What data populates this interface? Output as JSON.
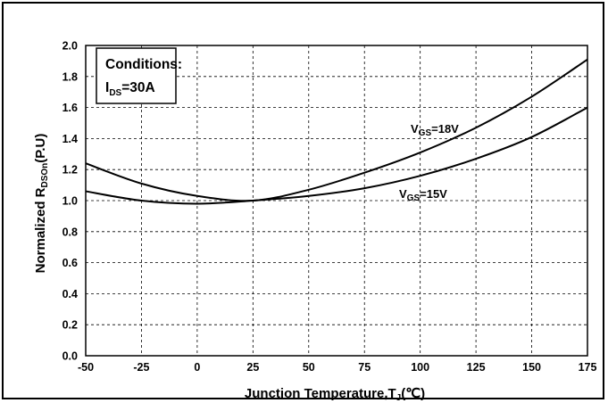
{
  "chart_data": {
    "type": "line",
    "xlabel": {
      "main": "Junction Temperature,T",
      "sub": "J",
      "unit": "(℃)"
    },
    "ylabel": {
      "main": "Normalized R",
      "sub": "DSOn",
      "unit": "(P.U)"
    },
    "xlim": [
      -50,
      175
    ],
    "ylim": [
      0,
      2.0
    ],
    "x_ticks": [
      "-50",
      "-25",
      "0",
      "25",
      "50",
      "75",
      "100",
      "125",
      "150",
      "175"
    ],
    "y_ticks": [
      "0.0",
      "0.2",
      "0.4",
      "0.6",
      "0.8",
      "1.0",
      "1.2",
      "1.4",
      "1.6",
      "1.8",
      "2.0"
    ],
    "grid": true,
    "annotation": {
      "title": "Conditions:",
      "line_main": "I",
      "line_sub": "DS",
      "line_value": "=30A"
    },
    "series": [
      {
        "label_main": "V",
        "label_sub": "GS",
        "label_value": "=18V",
        "x": [
          -50,
          -25,
          0,
          25,
          50,
          75,
          100,
          125,
          150,
          175
        ],
        "values": [
          1.24,
          1.11,
          1.03,
          1.0,
          1.07,
          1.18,
          1.31,
          1.47,
          1.67,
          1.91
        ],
        "color": "#000000"
      },
      {
        "label_main": "V",
        "label_sub": "GS",
        "label_value": "=15V",
        "x": [
          -50,
          -25,
          0,
          25,
          50,
          75,
          100,
          125,
          150,
          175
        ],
        "values": [
          1.06,
          1.0,
          0.98,
          1.0,
          1.03,
          1.08,
          1.16,
          1.27,
          1.41,
          1.6
        ],
        "color": "#000000"
      }
    ]
  }
}
